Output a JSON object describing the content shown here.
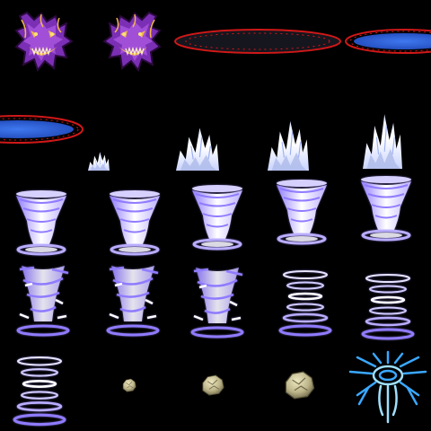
{
  "sheet": {
    "background": "#000000",
    "colors": {
      "demon_body": "#7a2fb5",
      "demon_hi": "#f0b84a",
      "demon_dark": "#2a0a3c",
      "portal_ring": "#d01818",
      "portal_water": "#2f63d8",
      "portal_dark": "#16161e",
      "tornado_white": "#f2f4ff",
      "tornado_purple": "#8f7bff",
      "flame_white": "#eef3ff",
      "flame_shadow": "#aebae8",
      "rock_light": "#d8d2a8",
      "rock_dark": "#6b6546",
      "sigil_blue": "#3aa8ff",
      "sigil_light": "#9fe0ff"
    },
    "icons": [
      "demon-head-left-icon",
      "demon-head-right-icon",
      "portal-ring-empty-icon",
      "portal-ring-water-icon",
      "flame-burst-icon",
      "tornado-icon",
      "rock-debris-icon",
      "ice-sigil-icon"
    ]
  }
}
